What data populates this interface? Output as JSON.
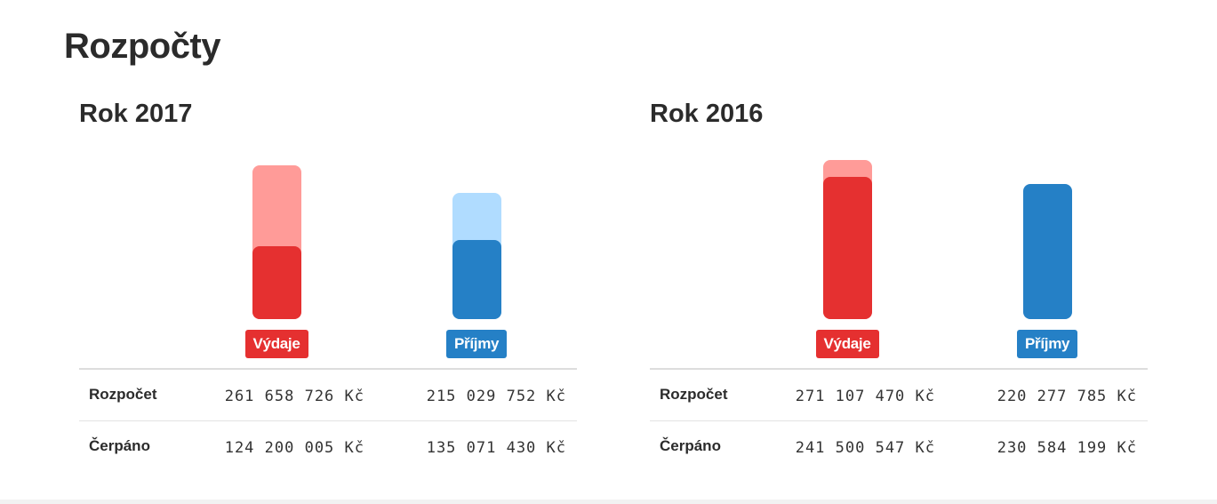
{
  "page": {
    "title": "Rozpočty"
  },
  "colors": {
    "expense_budget": "#ff9b98",
    "expense_spent": "#e53030",
    "income_budget": "#b0dcff",
    "income_spent": "#2580c6"
  },
  "chart_data": [
    {
      "type": "bar",
      "title": "Rok 2017",
      "categories": [
        "Výdaje",
        "Příjmy"
      ],
      "series": [
        {
          "name": "Rozpočet",
          "values": [
            261658726,
            215029752
          ]
        },
        {
          "name": "Čerpáno",
          "values": [
            124200005,
            135071430
          ]
        }
      ],
      "table": {
        "rows": [
          {
            "label": "Rozpočet",
            "values": [
              "261 658 726 Kč",
              "215 029 752 Kč"
            ]
          },
          {
            "label": "Čerpáno",
            "values": [
              "124 200 005 Kč",
              "135 071 430 Kč"
            ]
          }
        ]
      }
    },
    {
      "type": "bar",
      "title": "Rok 2016",
      "categories": [
        "Výdaje",
        "Příjmy"
      ],
      "series": [
        {
          "name": "Rozpočet",
          "values": [
            271107470,
            220277785
          ]
        },
        {
          "name": "Čerpáno",
          "values": [
            241500547,
            230584199
          ]
        }
      ],
      "table": {
        "rows": [
          {
            "label": "Rozpočet",
            "values": [
              "271 107 470 Kč",
              "220 277 785 Kč"
            ]
          },
          {
            "label": "Čerpáno",
            "values": [
              "241 500 547 Kč",
              "230 584 199 Kč"
            ]
          }
        ]
      }
    }
  ]
}
